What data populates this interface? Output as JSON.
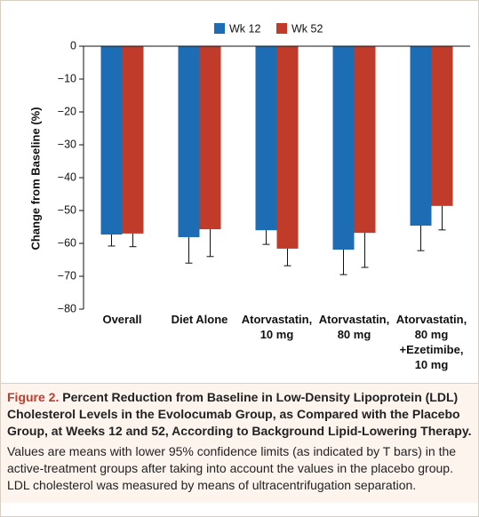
{
  "chart_data": {
    "type": "bar",
    "legend": "top",
    "ylabel": "Change from Baseline (%)",
    "categories": [
      [
        "Overall"
      ],
      [
        "Diet Alone"
      ],
      [
        "Atorvastatin,",
        "10 mg"
      ],
      [
        "Atorvastatin,",
        "80 mg"
      ],
      [
        "Atorvastatin,",
        "80 mg",
        "+Ezetimibe,",
        "10 mg"
      ]
    ],
    "series": [
      {
        "name": "Wk 12",
        "color": "#1d6db4",
        "values": [
          -57.3,
          -58.1,
          -56,
          -61.9,
          -54.6
        ],
        "lower_ci": [
          -60.8,
          -66,
          -60.3,
          -69.5,
          -62.2
        ]
      },
      {
        "name": "Wk 52",
        "color": "#c13b2b",
        "values": [
          -57,
          -55.7,
          -61.6,
          -56.8,
          -48.6
        ],
        "lower_ci": [
          -61,
          -64,
          -66.8,
          -67.3,
          -55.9
        ]
      }
    ],
    "ylim": [
      -80,
      0
    ],
    "yticks": [
      {
        "value": 0,
        "label": "0"
      },
      {
        "value": -10,
        "label": "−10"
      },
      {
        "value": -20,
        "label": "−20"
      },
      {
        "value": -30,
        "label": "−30"
      },
      {
        "value": -40,
        "label": "−40"
      },
      {
        "value": -50,
        "label": "−50"
      },
      {
        "value": -60,
        "label": "−60"
      },
      {
        "value": -70,
        "label": "−70"
      },
      {
        "value": -80,
        "label": "−80"
      }
    ],
    "grid": false
  },
  "caption": {
    "label": "Figure 2.",
    "title": "Percent Reduction from Baseline in Low-Density Lipoprotein (LDL) Cholesterol Levels in the Evolocumab Group, as Compared with the Placebo Group, at Weeks 12 and 52, According to Background Lipid-Lowering Therapy.",
    "text": "Values are means with lower 95% confidence limits (as indicated by T bars) in the active-treatment groups after taking into account the values in the placebo group. LDL cholesterol was measured by means of ultracentrifugation separation."
  }
}
